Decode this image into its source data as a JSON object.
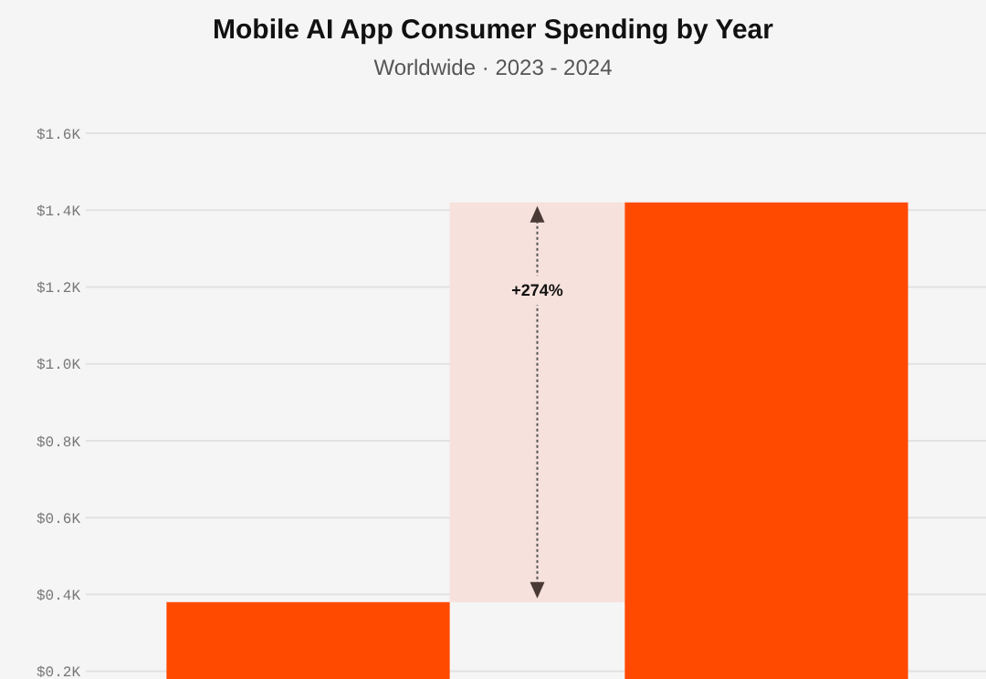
{
  "chart_data": {
    "type": "bar",
    "title": "Mobile AI App Consumer Spending by Year",
    "subtitle": "Worldwide · 2023 - 2024",
    "categories": [
      null,
      null
    ],
    "values": [
      0.38,
      1.42
    ],
    "color": "#ff4a00",
    "ylim": [
      0.18,
      1.6
    ],
    "yticks": [
      {
        "value": 0.2,
        "label": "$0.2K"
      },
      {
        "value": 0.4,
        "label": "$0.4K"
      },
      {
        "value": 0.6,
        "label": "$0.6K"
      },
      {
        "value": 0.8,
        "label": "$0.8K"
      },
      {
        "value": 1,
        "label": "$1.0K"
      },
      {
        "value": 1.2,
        "label": "$1.2K"
      },
      {
        "value": 1.4,
        "label": "$1.4K"
      },
      {
        "value": 1.6,
        "label": "$1.6K"
      }
    ],
    "grid": "y",
    "bands": [
      {
        "axis": "y",
        "from": 0.38,
        "to": 1.42,
        "color": "#f6e1dc"
      }
    ],
    "annotations": [
      "+274%"
    ]
  }
}
